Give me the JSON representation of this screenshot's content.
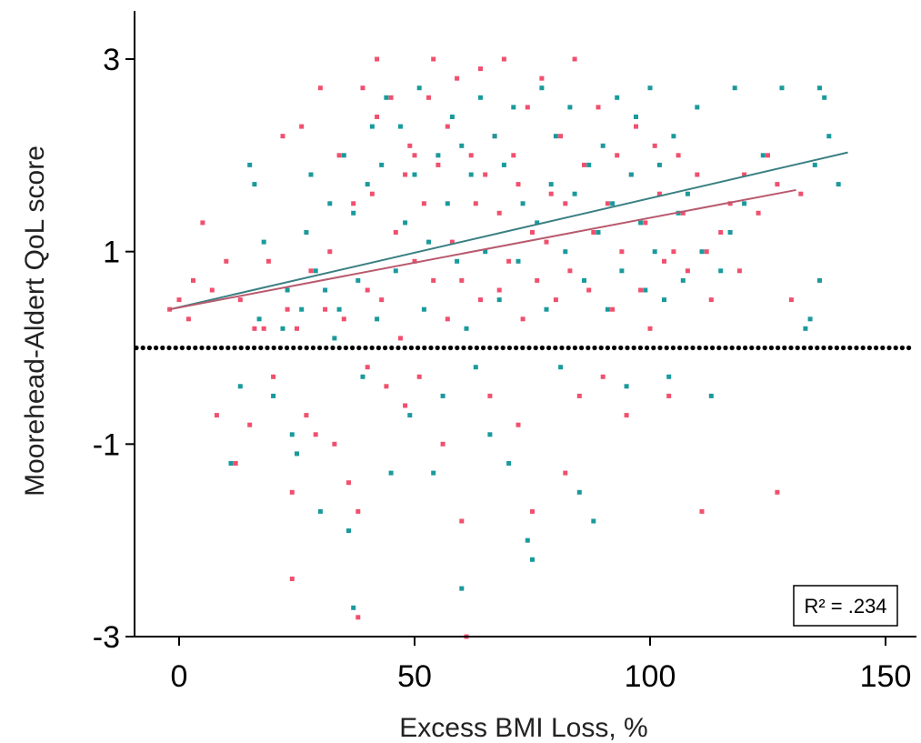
{
  "chart_data": {
    "type": "scatter",
    "xlabel": "Excess BMI Loss, %",
    "ylabel": "Moorehead-Aldert QoL score",
    "xlim": [
      -10,
      157
    ],
    "ylim": [
      -3,
      3.5
    ],
    "x_ticks": [
      0,
      50,
      100,
      150
    ],
    "x_tick_labels": [
      "0",
      "50",
      "100",
      "150"
    ],
    "y_ticks": [
      3,
      1,
      -1,
      -3
    ],
    "y_tick_labels": [
      "3",
      "1",
      "-1",
      "-3"
    ],
    "grid": false,
    "annotation": "R² = .234",
    "annotation_position": "bottom-right",
    "reference_line": {
      "y": 0,
      "style": "dotted",
      "color": "#000000"
    },
    "series": [
      {
        "color": "#f0506e",
        "points": [
          [
            -2,
            0.4
          ],
          [
            0,
            0.5
          ],
          [
            2,
            0.3
          ],
          [
            3,
            0.7
          ],
          [
            5,
            1.3
          ],
          [
            7,
            0.6
          ],
          [
            8,
            -0.7
          ],
          [
            10,
            0.9
          ],
          [
            12,
            -1.2
          ],
          [
            13,
            0.5
          ],
          [
            15,
            -0.8
          ],
          [
            16,
            0.2
          ],
          [
            18,
            0.2
          ],
          [
            19,
            0.9
          ],
          [
            20,
            -0.3
          ],
          [
            22,
            2.2
          ],
          [
            23,
            0.4
          ],
          [
            24,
            -1.5
          ],
          [
            24,
            -2.4
          ],
          [
            25,
            0.2
          ],
          [
            26,
            2.3
          ],
          [
            27,
            -0.7
          ],
          [
            28,
            0.8
          ],
          [
            29,
            -0.9
          ],
          [
            30,
            2.7
          ],
          [
            31,
            0.4
          ],
          [
            32,
            1.0
          ],
          [
            33,
            -1.0
          ],
          [
            34,
            2.0
          ],
          [
            35,
            0.3
          ],
          [
            36,
            -1.4
          ],
          [
            37,
            1.5
          ],
          [
            38,
            -2.8
          ],
          [
            38,
            -1.7
          ],
          [
            39,
            2.7
          ],
          [
            40,
            0.6
          ],
          [
            40,
            -0.2
          ],
          [
            41,
            1.6
          ],
          [
            42,
            3.0
          ],
          [
            42,
            2.4
          ],
          [
            43,
            0.5
          ],
          [
            44,
            -0.4
          ],
          [
            45,
            2.6
          ],
          [
            46,
            1.2
          ],
          [
            47,
            0.1
          ],
          [
            48,
            1.8
          ],
          [
            48,
            -0.6
          ],
          [
            49,
            2.1
          ],
          [
            50,
            0.9
          ],
          [
            50,
            2.0
          ],
          [
            51,
            -0.3
          ],
          [
            52,
            1.5
          ],
          [
            53,
            2.6
          ],
          [
            54,
            0.7
          ],
          [
            54,
            3.0
          ],
          [
            55,
            1.9
          ],
          [
            56,
            -1.0
          ],
          [
            57,
            2.3
          ],
          [
            57,
            0.3
          ],
          [
            58,
            1.1
          ],
          [
            59,
            2.8
          ],
          [
            60,
            0.7
          ],
          [
            60,
            -1.8
          ],
          [
            61,
            -3.0
          ],
          [
            62,
            2.0
          ],
          [
            63,
            1.5
          ],
          [
            64,
            0.5
          ],
          [
            64,
            2.9
          ],
          [
            65,
            1.8
          ],
          [
            66,
            -0.5
          ],
          [
            67,
            2.2
          ],
          [
            68,
            0.6
          ],
          [
            68,
            1.4
          ],
          [
            69,
            3.0
          ],
          [
            70,
            0.9
          ],
          [
            71,
            2.0
          ],
          [
            72,
            -0.8
          ],
          [
            72,
            1.7
          ],
          [
            73,
            0.3
          ],
          [
            74,
            2.5
          ],
          [
            75,
            1.2
          ],
          [
            75,
            -1.7
          ],
          [
            76,
            0.7
          ],
          [
            77,
            2.8
          ],
          [
            78,
            1.1
          ],
          [
            79,
            1.6
          ],
          [
            80,
            0.5
          ],
          [
            81,
            2.2
          ],
          [
            82,
            -1.3
          ],
          [
            82,
            1.5
          ],
          [
            83,
            0.8
          ],
          [
            84,
            3.0
          ],
          [
            85,
            -0.5
          ],
          [
            86,
            1.9
          ],
          [
            87,
            0.6
          ],
          [
            88,
            1.2
          ],
          [
            89,
            2.5
          ],
          [
            90,
            -0.3
          ],
          [
            91,
            1.5
          ],
          [
            92,
            0.4
          ],
          [
            93,
            2.0
          ],
          [
            94,
            1.0
          ],
          [
            95,
            -0.7
          ],
          [
            96,
            1.8
          ],
          [
            97,
            2.3
          ],
          [
            98,
            0.6
          ],
          [
            99,
            1.3
          ],
          [
            100,
            0.2
          ],
          [
            101,
            2.1
          ],
          [
            102,
            1.6
          ],
          [
            103,
            0.9
          ],
          [
            104,
            -0.5
          ],
          [
            105,
            1.0
          ],
          [
            106,
            2.0
          ],
          [
            107,
            1.4
          ],
          [
            108,
            0.8
          ],
          [
            110,
            1.8
          ],
          [
            111,
            -1.7
          ],
          [
            112,
            1.0
          ],
          [
            113,
            0.5
          ],
          [
            115,
            1.2
          ],
          [
            117,
            1.5
          ],
          [
            119,
            0.8
          ],
          [
            120,
            1.8
          ],
          [
            123,
            1.4
          ],
          [
            125,
            2.0
          ],
          [
            127,
            -1.5
          ],
          [
            127,
            1.7
          ],
          [
            130,
            0.5
          ],
          [
            132,
            1.6
          ]
        ]
      },
      {
        "color": "#1a9a9c",
        "points": [
          [
            11,
            -1.2
          ],
          [
            13,
            -0.4
          ],
          [
            15,
            1.9
          ],
          [
            16,
            1.7
          ],
          [
            17,
            0.3
          ],
          [
            18,
            1.1
          ],
          [
            20,
            -0.5
          ],
          [
            22,
            0.2
          ],
          [
            23,
            0.6
          ],
          [
            24,
            -0.9
          ],
          [
            25,
            -1.1
          ],
          [
            26,
            0.4
          ],
          [
            27,
            1.2
          ],
          [
            28,
            1.8
          ],
          [
            29,
            0.8
          ],
          [
            30,
            -1.7
          ],
          [
            31,
            0.6
          ],
          [
            32,
            1.5
          ],
          [
            33,
            0.1
          ],
          [
            34,
            0.4
          ],
          [
            35,
            2.0
          ],
          [
            36,
            -1.9
          ],
          [
            37,
            1.4
          ],
          [
            37,
            -2.7
          ],
          [
            38,
            0.7
          ],
          [
            39,
            -0.3
          ],
          [
            40,
            1.7
          ],
          [
            41,
            2.3
          ],
          [
            42,
            0.3
          ],
          [
            43,
            1.9
          ],
          [
            44,
            2.6
          ],
          [
            45,
            -1.3
          ],
          [
            46,
            0.8
          ],
          [
            47,
            2.3
          ],
          [
            48,
            1.3
          ],
          [
            49,
            -0.7
          ],
          [
            50,
            1.8
          ],
          [
            51,
            2.7
          ],
          [
            52,
            0.4
          ],
          [
            53,
            1.1
          ],
          [
            54,
            -1.3
          ],
          [
            55,
            2.0
          ],
          [
            56,
            -0.5
          ],
          [
            57,
            1.5
          ],
          [
            58,
            2.4
          ],
          [
            59,
            0.9
          ],
          [
            60,
            -2.5
          ],
          [
            60,
            2.1
          ],
          [
            61,
            0.2
          ],
          [
            62,
            1.8
          ],
          [
            63,
            -0.2
          ],
          [
            64,
            2.6
          ],
          [
            65,
            1.0
          ],
          [
            66,
            -0.9
          ],
          [
            67,
            2.2
          ],
          [
            68,
            0.5
          ],
          [
            69,
            1.9
          ],
          [
            70,
            -1.2
          ],
          [
            71,
            2.5
          ],
          [
            72,
            0.9
          ],
          [
            73,
            1.5
          ],
          [
            74,
            -2.0
          ],
          [
            75,
            -2.2
          ],
          [
            76,
            1.3
          ],
          [
            77,
            2.7
          ],
          [
            78,
            0.4
          ],
          [
            79,
            1.7
          ],
          [
            80,
            2.2
          ],
          [
            81,
            -0.2
          ],
          [
            82,
            1.0
          ],
          [
            83,
            2.5
          ],
          [
            84,
            1.6
          ],
          [
            85,
            -1.5
          ],
          [
            86,
            0.7
          ],
          [
            87,
            1.9
          ],
          [
            88,
            -1.8
          ],
          [
            89,
            1.2
          ],
          [
            90,
            2.1
          ],
          [
            91,
            0.4
          ],
          [
            92,
            1.5
          ],
          [
            93,
            2.6
          ],
          [
            94,
            0.8
          ],
          [
            95,
            -0.4
          ],
          [
            96,
            1.8
          ],
          [
            97,
            2.4
          ],
          [
            98,
            1.3
          ],
          [
            99,
            0.6
          ],
          [
            100,
            2.7
          ],
          [
            101,
            1.0
          ],
          [
            102,
            1.9
          ],
          [
            103,
            0.5
          ],
          [
            104,
            -0.3
          ],
          [
            105,
            2.2
          ],
          [
            106,
            1.4
          ],
          [
            107,
            0.7
          ],
          [
            108,
            1.6
          ],
          [
            110,
            2.5
          ],
          [
            111,
            1.0
          ],
          [
            113,
            -0.5
          ],
          [
            115,
            0.8
          ],
          [
            117,
            1.2
          ],
          [
            118,
            2.7
          ],
          [
            120,
            1.5
          ],
          [
            124,
            2.0
          ],
          [
            128,
            2.7
          ],
          [
            133,
            0.2
          ],
          [
            134,
            0.3
          ],
          [
            135,
            1.9
          ],
          [
            136,
            0.7
          ],
          [
            136,
            2.7
          ],
          [
            137,
            2.6
          ],
          [
            138,
            2.2
          ],
          [
            140,
            1.7
          ]
        ]
      }
    ],
    "trend_lines": [
      {
        "color": "#3a7f82",
        "x": [
          -2,
          142
        ],
        "y": [
          0.4,
          2.03
        ]
      },
      {
        "color": "#b85a6e",
        "x": [
          -2,
          131
        ],
        "y": [
          0.4,
          1.64
        ]
      }
    ]
  }
}
